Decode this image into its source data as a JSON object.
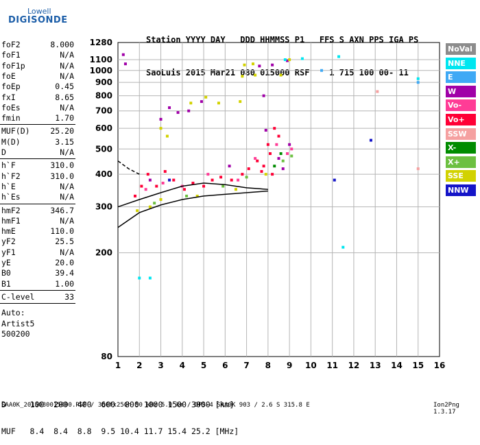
{
  "logo": {
    "line1": "Lowell",
    "line2": "DIGISONDE"
  },
  "header": {
    "line1": "Station YYYY DAY   DDD HHMMSS P1   FFS S AXN PPS IGA PS",
    "line2": "SaoLuis 2015 Mar21 080 015000 RSF    1 715 100 00- 11"
  },
  "params_group1": [
    {
      "name": "foF2",
      "value": "8.000"
    },
    {
      "name": "foF1",
      "value": "N/A"
    },
    {
      "name": "foF1p",
      "value": "N/A"
    },
    {
      "name": "foE",
      "value": "N/A"
    },
    {
      "name": "foEp",
      "value": "0.45"
    },
    {
      "name": "fxI",
      "value": "8.65"
    },
    {
      "name": "foEs",
      "value": "N/A"
    },
    {
      "name": "fmin",
      "value": "1.70"
    }
  ],
  "params_group2": [
    {
      "name": "MUF(D)",
      "value": "25.20"
    },
    {
      "name": "M(D)",
      "value": "3.15"
    },
    {
      "name": "D",
      "value": "N/A"
    }
  ],
  "params_group3": [
    {
      "name": "h`F",
      "value": "310.0"
    },
    {
      "name": "h`F2",
      "value": "310.0"
    },
    {
      "name": "h`E",
      "value": "N/A"
    },
    {
      "name": "h`Es",
      "value": "N/A"
    }
  ],
  "params_group4": [
    {
      "name": "hmF2",
      "value": "346.7"
    },
    {
      "name": "hmF1",
      "value": "N/A"
    },
    {
      "name": "hmE",
      "value": "110.0"
    },
    {
      "name": "yF2",
      "value": "25.5"
    },
    {
      "name": "yF1",
      "value": "N/A"
    },
    {
      "name": "yE",
      "value": "20.0"
    },
    {
      "name": "B0",
      "value": "39.4"
    },
    {
      "name": "B1",
      "value": "1.00"
    }
  ],
  "params_group5": [
    {
      "name": "C-level",
      "value": "33"
    }
  ],
  "auto_info": [
    "Auto:",
    "Artist5",
    "500200"
  ],
  "legend": [
    {
      "label": "NoVal",
      "color": "#8c8c8c"
    },
    {
      "label": "NNE",
      "color": "#00e6f0"
    },
    {
      "label": "E",
      "color": "#3fa9f5"
    },
    {
      "label": "W",
      "color": "#a000a8"
    },
    {
      "label": "Vo-",
      "color": "#ff3c96"
    },
    {
      "label": "Vo+",
      "color": "#ff0036"
    },
    {
      "label": "SSW",
      "color": "#f5a0a0"
    },
    {
      "label": "X-",
      "color": "#008c00"
    },
    {
      "label": "X+",
      "color": "#6cc040"
    },
    {
      "label": "SSE",
      "color": "#d2d200"
    },
    {
      "label": "NNW",
      "color": "#1414c8"
    }
  ],
  "bottom_table": {
    "d_row": "D     100  200  400  600  800 1000 1500 3000 [km]",
    "muf_row": "MUF   8.4  8.4  8.8  9.5 10.4 11.7 15.4 25.2 [MHz]"
  },
  "footer": "SAA0K_2015080015000.RSF / 300fx256h 50 kHz 5.0 km / DPS-4 SAA0K 903 / 2.6 S 315.8 E",
  "version": "Ion2Png 1.3.17",
  "chart_data": {
    "type": "scatter",
    "title": "",
    "xlabel": "",
    "ylabel": "",
    "x_unit": "MHz",
    "y_unit": "km",
    "y_scale": "log",
    "xlim": [
      1,
      16
    ],
    "ylim": [
      80,
      1280
    ],
    "x_ticks": [
      1,
      2,
      3,
      4,
      5,
      6,
      7,
      8,
      9,
      10,
      11,
      12,
      13,
      14,
      15,
      16
    ],
    "y_ticks": [
      80,
      200,
      300,
      400,
      500,
      600,
      700,
      800,
      900,
      1000,
      1100,
      1280
    ],
    "grid": true,
    "legend_position": "right",
    "series": [
      {
        "name": "W",
        "points": [
          [
            1.35,
            1060
          ],
          [
            1.25,
            1150
          ],
          [
            3.0,
            650
          ],
          [
            3.4,
            720
          ],
          [
            3.8,
            690
          ],
          [
            4.3,
            700
          ],
          [
            4.9,
            760
          ],
          [
            7.6,
            1040
          ],
          [
            8.2,
            1050
          ],
          [
            8.9,
            1090
          ],
          [
            8.7,
            420
          ],
          [
            9.0,
            520
          ],
          [
            6.2,
            430
          ],
          [
            2.5,
            380
          ],
          [
            7.8,
            800
          ],
          [
            7.9,
            590
          ],
          [
            8.5,
            460
          ]
        ]
      },
      {
        "name": "Vo+",
        "points": [
          [
            1.8,
            330
          ],
          [
            2.1,
            360
          ],
          [
            2.4,
            400
          ],
          [
            2.8,
            360
          ],
          [
            3.2,
            410
          ],
          [
            3.6,
            380
          ],
          [
            4.1,
            350
          ],
          [
            4.5,
            370
          ],
          [
            5.0,
            360
          ],
          [
            5.4,
            380
          ],
          [
            5.8,
            390
          ],
          [
            6.3,
            380
          ],
          [
            6.8,
            400
          ],
          [
            7.1,
            420
          ],
          [
            7.5,
            450
          ],
          [
            7.8,
            430
          ],
          [
            8.0,
            520
          ],
          [
            8.1,
            480
          ],
          [
            8.3,
            600
          ],
          [
            8.5,
            560
          ],
          [
            8.2,
            400
          ],
          [
            7.7,
            410
          ]
        ]
      },
      {
        "name": "Vo-",
        "points": [
          [
            2.3,
            350
          ],
          [
            3.1,
            370
          ],
          [
            4.0,
            360
          ],
          [
            5.2,
            400
          ],
          [
            6.6,
            380
          ],
          [
            7.4,
            460
          ],
          [
            8.4,
            520
          ],
          [
            8.9,
            480
          ],
          [
            9.1,
            500
          ]
        ]
      },
      {
        "name": "SSE",
        "points": [
          [
            1.9,
            290
          ],
          [
            2.5,
            300
          ],
          [
            3.0,
            320
          ],
          [
            3.3,
            560
          ],
          [
            3.0,
            600
          ],
          [
            4.4,
            750
          ],
          [
            5.1,
            790
          ],
          [
            5.7,
            750
          ],
          [
            6.7,
            760
          ],
          [
            6.9,
            1050
          ],
          [
            7.3,
            1060
          ],
          [
            6.8,
            950
          ],
          [
            7.4,
            960
          ],
          [
            7.9,
            400
          ],
          [
            9.0,
            1100
          ],
          [
            6.5,
            350
          ],
          [
            4.7,
            330
          ],
          [
            8.6,
            960
          ]
        ]
      },
      {
        "name": "X+",
        "points": [
          [
            2.7,
            310
          ],
          [
            4.2,
            330
          ],
          [
            5.9,
            360
          ],
          [
            7.0,
            390
          ],
          [
            8.7,
            450
          ],
          [
            9.1,
            470
          ]
        ]
      },
      {
        "name": "X-",
        "points": [
          [
            8.3,
            430
          ],
          [
            8.6,
            480
          ]
        ]
      },
      {
        "name": "NNE",
        "points": [
          [
            2.0,
            160
          ],
          [
            2.5,
            160
          ],
          [
            8.8,
            1100
          ],
          [
            9.6,
            1110
          ],
          [
            11.3,
            1130
          ],
          [
            15.0,
            930
          ],
          [
            11.5,
            210
          ]
        ]
      },
      {
        "name": "E",
        "points": [
          [
            15.0,
            900
          ],
          [
            10.5,
            1000
          ]
        ]
      },
      {
        "name": "NNW",
        "points": [
          [
            12.8,
            540
          ],
          [
            11.1,
            380
          ],
          [
            3.4,
            380
          ]
        ]
      },
      {
        "name": "SSW",
        "points": [
          [
            15.0,
            420
          ],
          [
            13.1,
            830
          ]
        ]
      }
    ],
    "trace_lines": [
      {
        "name": "upper trace",
        "points": [
          [
            1.0,
            300
          ],
          [
            2.0,
            320
          ],
          [
            3.0,
            340
          ],
          [
            4.0,
            360
          ],
          [
            5.0,
            370
          ],
          [
            6.0,
            365
          ],
          [
            7.0,
            355
          ],
          [
            8.0,
            350
          ]
        ]
      },
      {
        "name": "lower trace",
        "points": [
          [
            1.0,
            250
          ],
          [
            2.0,
            285
          ],
          [
            3.0,
            305
          ],
          [
            4.0,
            320
          ],
          [
            5.0,
            330
          ],
          [
            6.0,
            335
          ],
          [
            7.0,
            340
          ],
          [
            8.0,
            345
          ]
        ]
      },
      {
        "name": "dashed segment",
        "points": [
          [
            1.0,
            450
          ],
          [
            1.5,
            420
          ],
          [
            2.0,
            400
          ]
        ]
      }
    ]
  }
}
